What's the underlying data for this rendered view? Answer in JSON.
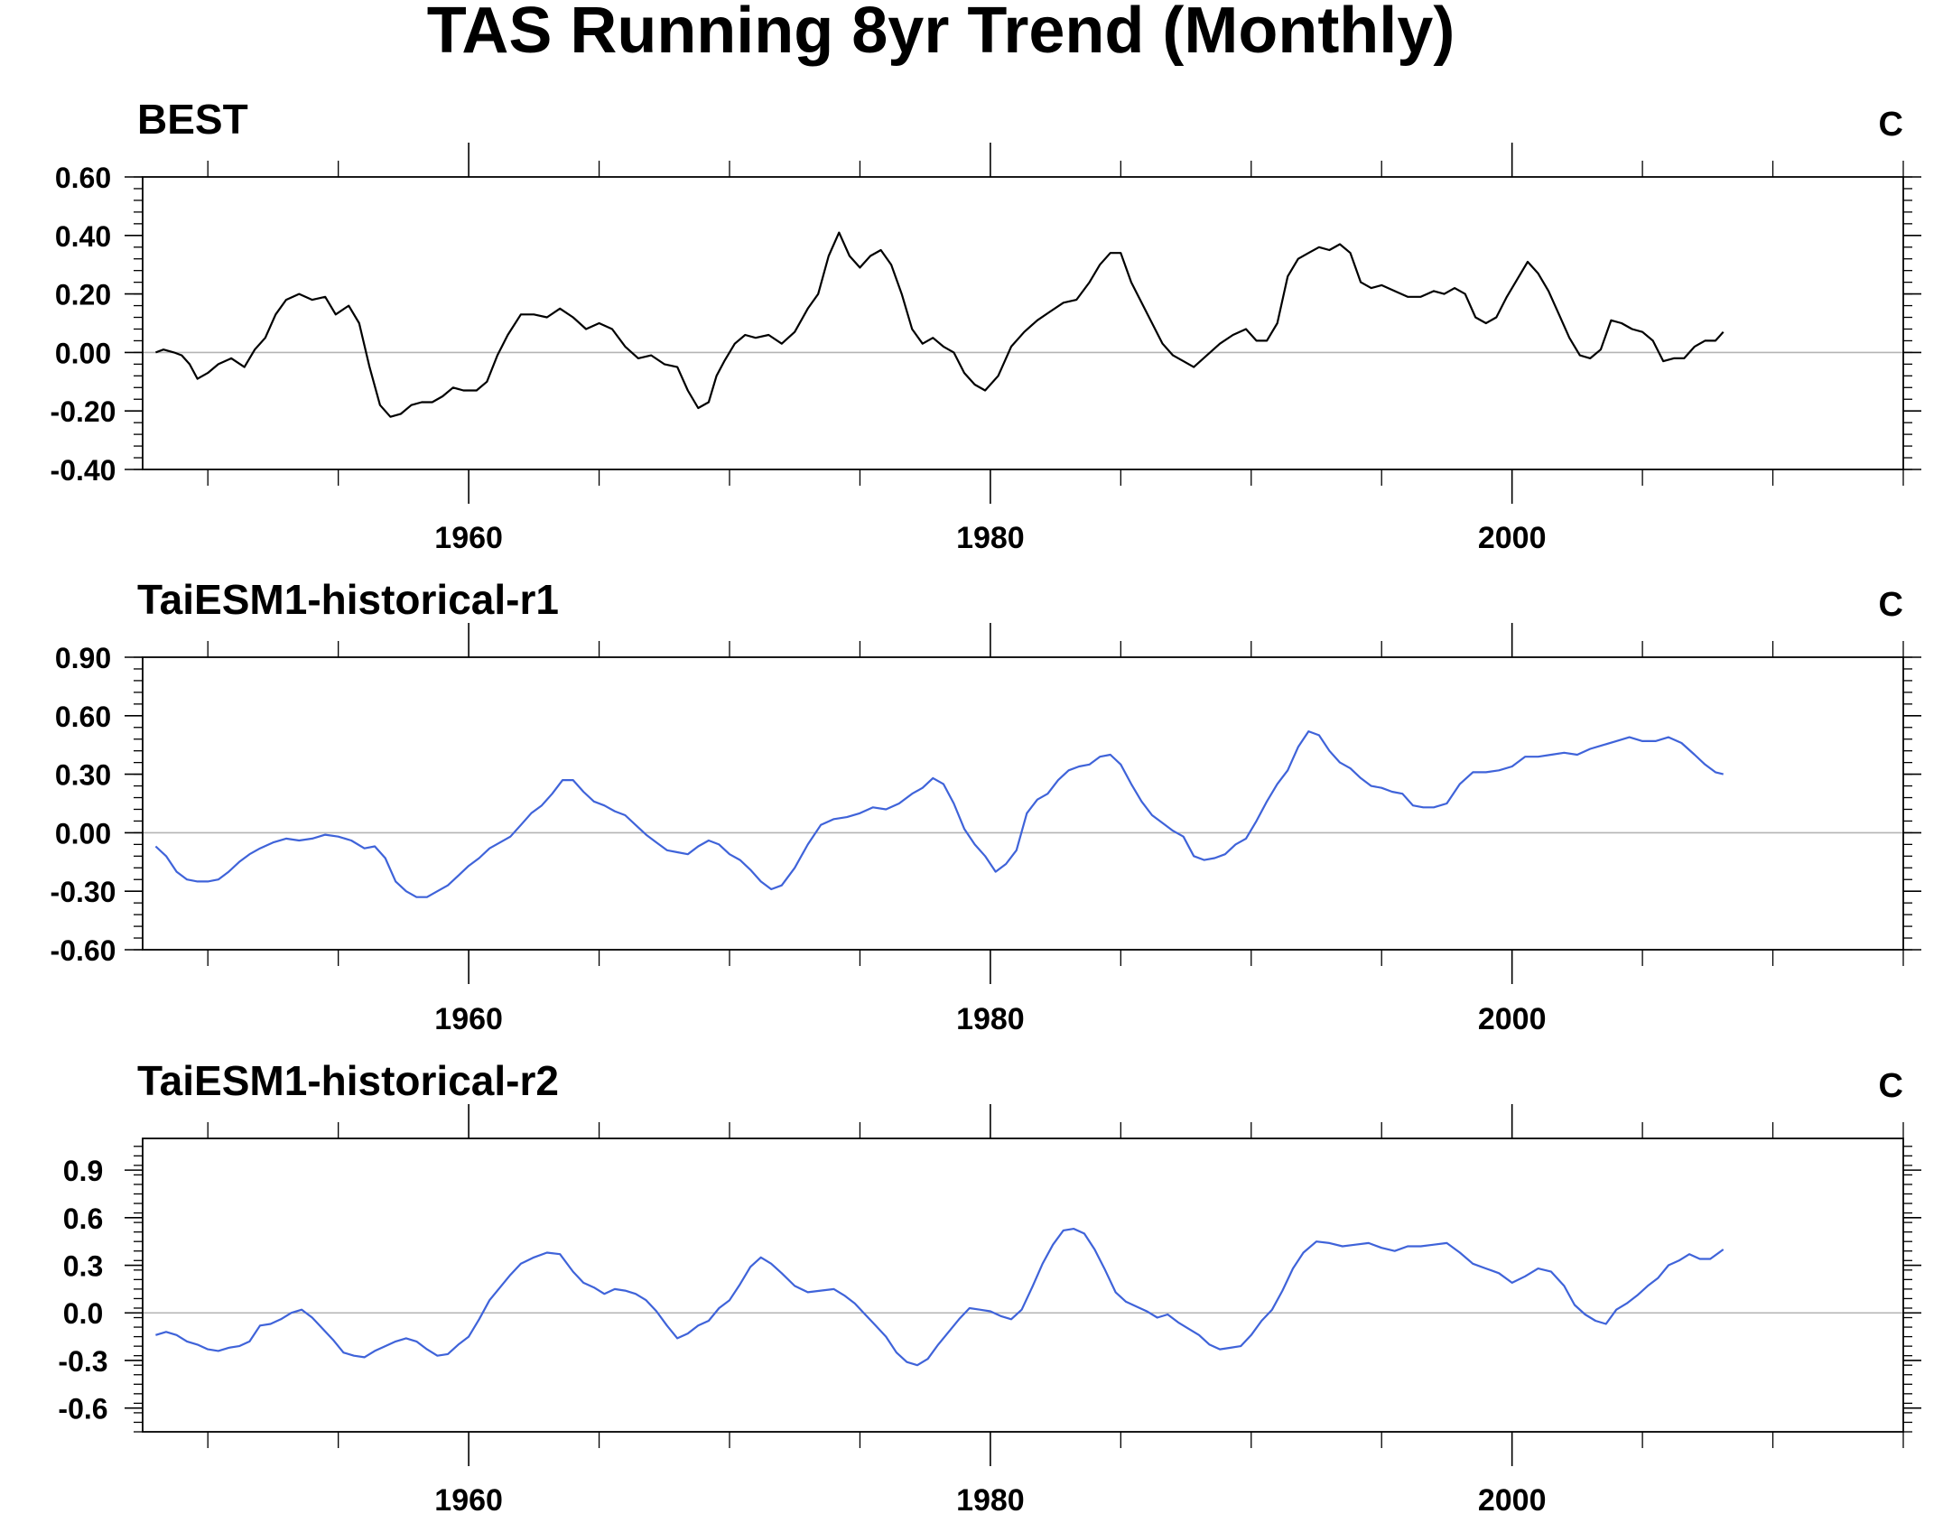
{
  "title": "TAS Running 8yr Trend (Monthly)",
  "colors": {
    "obs": "#000000",
    "model": "#3f63d9",
    "zero": "#b4b4b4",
    "axis": "#000000"
  },
  "chart_data": [
    {
      "type": "line",
      "title": "BEST",
      "units": "C",
      "xlim": [
        1947.5,
        2015
      ],
      "ylim": [
        -0.4,
        0.6
      ],
      "yticks": [
        -0.4,
        -0.2,
        0.0,
        0.2,
        0.4,
        0.6
      ],
      "ytick_labels": [
        "-0.40",
        "-0.20",
        "0.00",
        "0.20",
        "0.40",
        "0.60"
      ],
      "xticks": [
        1960,
        1980,
        2000
      ],
      "xtick_labels": [
        "1960",
        "1980",
        "2000"
      ],
      "series": [
        {
          "color": "#000000",
          "x": [
            1948.0,
            1948.3,
            1948.7,
            1949.0,
            1949.3,
            1949.6,
            1950.0,
            1950.4,
            1950.9,
            1951.4,
            1951.8,
            1952.2,
            1952.6,
            1953.0,
            1953.5,
            1954.0,
            1954.5,
            1954.9,
            1955.4,
            1955.8,
            1956.2,
            1956.6,
            1957.0,
            1957.4,
            1957.8,
            1958.2,
            1958.6,
            1959.0,
            1959.4,
            1959.8,
            1960.3,
            1960.7,
            1961.1,
            1961.5,
            1962.0,
            1962.5,
            1963.0,
            1963.5,
            1964.0,
            1964.5,
            1965.0,
            1965.5,
            1966.0,
            1966.5,
            1967.0,
            1967.5,
            1968.0,
            1968.4,
            1968.8,
            1969.2,
            1969.5,
            1969.8,
            1970.2,
            1970.6,
            1971.0,
            1971.5,
            1972.0,
            1972.5,
            1973.0,
            1973.4,
            1973.8,
            1974.2,
            1974.6,
            1975.0,
            1975.4,
            1975.8,
            1976.2,
            1976.6,
            1977.0,
            1977.4,
            1977.8,
            1978.2,
            1978.6,
            1979.0,
            1979.4,
            1979.8,
            1980.3,
            1980.8,
            1981.3,
            1981.8,
            1982.3,
            1982.8,
            1983.3,
            1983.8,
            1984.2,
            1984.6,
            1985.0,
            1985.4,
            1985.8,
            1986.2,
            1986.6,
            1987.0,
            1987.4,
            1987.8,
            1988.3,
            1988.8,
            1989.3,
            1989.8,
            1990.2,
            1990.6,
            1991.0,
            1991.4,
            1991.8,
            1992.2,
            1992.6,
            1993.0,
            1993.4,
            1993.8,
            1994.2,
            1994.6,
            1995.0,
            1995.5,
            1996.0,
            1996.5,
            1997.0,
            1997.4,
            1997.8,
            1998.2,
            1998.6,
            1999.0,
            1999.4,
            1999.8,
            2000.2,
            2000.6,
            2001.0,
            2001.4,
            2001.8,
            2002.2,
            2002.6,
            2003.0,
            2003.4,
            2003.8,
            2004.2,
            2004.6,
            2005.0,
            2005.4,
            2005.8,
            2006.2,
            2006.6,
            2007.0,
            2007.4,
            2007.8,
            2008.1
          ],
          "y": [
            0.0,
            0.01,
            0.0,
            -0.01,
            -0.04,
            -0.09,
            -0.07,
            -0.04,
            -0.02,
            -0.05,
            0.01,
            0.05,
            0.13,
            0.18,
            0.2,
            0.18,
            0.19,
            0.13,
            0.16,
            0.1,
            -0.05,
            -0.18,
            -0.22,
            -0.21,
            -0.18,
            -0.17,
            -0.17,
            -0.15,
            -0.12,
            -0.13,
            -0.13,
            -0.1,
            -0.01,
            0.06,
            0.13,
            0.13,
            0.12,
            0.15,
            0.12,
            0.08,
            0.1,
            0.08,
            0.02,
            -0.02,
            -0.01,
            -0.04,
            -0.05,
            -0.13,
            -0.19,
            -0.17,
            -0.08,
            -0.03,
            0.03,
            0.06,
            0.05,
            0.06,
            0.03,
            0.07,
            0.15,
            0.2,
            0.33,
            0.41,
            0.33,
            0.29,
            0.33,
            0.35,
            0.3,
            0.2,
            0.08,
            0.03,
            0.05,
            0.02,
            0.0,
            -0.07,
            -0.11,
            -0.13,
            -0.08,
            0.02,
            0.07,
            0.11,
            0.14,
            0.17,
            0.18,
            0.24,
            0.3,
            0.34,
            0.34,
            0.24,
            0.17,
            0.1,
            0.03,
            -0.01,
            -0.03,
            -0.05,
            -0.01,
            0.03,
            0.06,
            0.08,
            0.04,
            0.04,
            0.1,
            0.26,
            0.32,
            0.34,
            0.36,
            0.35,
            0.37,
            0.34,
            0.24,
            0.22,
            0.23,
            0.21,
            0.19,
            0.19,
            0.21,
            0.2,
            0.22,
            0.2,
            0.12,
            0.1,
            0.12,
            0.19,
            0.25,
            0.31,
            0.27,
            0.21,
            0.13,
            0.05,
            -0.01,
            -0.02,
            0.01,
            0.11,
            0.1,
            0.08,
            0.07,
            0.04,
            -0.03,
            -0.02,
            -0.02,
            0.02,
            0.04,
            0.04,
            0.07
          ]
        }
      ]
    },
    {
      "type": "line",
      "title": "TaiESM1-historical-r1",
      "units": "C",
      "xlim": [
        1947.5,
        2015
      ],
      "ylim": [
        -0.6,
        0.9
      ],
      "yticks": [
        -0.6,
        -0.3,
        0.0,
        0.3,
        0.6,
        0.9
      ],
      "ytick_labels": [
        "-0.60",
        "-0.30",
        "0.00",
        "0.30",
        "0.60",
        "0.90"
      ],
      "xticks": [
        1960,
        1980,
        2000
      ],
      "xtick_labels": [
        "1960",
        "1980",
        "2000"
      ],
      "series": [
        {
          "color": "#3f63d9",
          "x": [
            1948.0,
            1948.4,
            1948.8,
            1949.2,
            1949.6,
            1950.0,
            1950.4,
            1950.8,
            1951.2,
            1951.6,
            1952.0,
            1952.5,
            1953.0,
            1953.5,
            1954.0,
            1954.5,
            1955.0,
            1955.5,
            1956.0,
            1956.4,
            1956.8,
            1957.2,
            1957.6,
            1958.0,
            1958.4,
            1958.8,
            1959.2,
            1959.6,
            1960.0,
            1960.4,
            1960.8,
            1961.2,
            1961.6,
            1962.0,
            1962.4,
            1962.8,
            1963.2,
            1963.6,
            1964.0,
            1964.4,
            1964.8,
            1965.2,
            1965.6,
            1966.0,
            1966.4,
            1966.8,
            1967.2,
            1967.6,
            1968.0,
            1968.4,
            1968.8,
            1969.2,
            1969.6,
            1970.0,
            1970.4,
            1970.8,
            1971.2,
            1971.6,
            1972.0,
            1972.5,
            1973.0,
            1973.5,
            1974.0,
            1974.5,
            1975.0,
            1975.5,
            1976.0,
            1976.5,
            1977.0,
            1977.4,
            1977.8,
            1978.2,
            1978.6,
            1979.0,
            1979.4,
            1979.8,
            1980.2,
            1980.6,
            1981.0,
            1981.4,
            1981.8,
            1982.2,
            1982.6,
            1983.0,
            1983.4,
            1983.8,
            1984.2,
            1984.6,
            1985.0,
            1985.4,
            1985.8,
            1986.2,
            1986.6,
            1987.0,
            1987.4,
            1987.8,
            1988.2,
            1988.6,
            1989.0,
            1989.4,
            1989.8,
            1990.2,
            1990.6,
            1991.0,
            1991.4,
            1991.8,
            1992.2,
            1992.6,
            1993.0,
            1993.4,
            1993.8,
            1994.2,
            1994.6,
            1995.0,
            1995.4,
            1995.8,
            1996.2,
            1996.6,
            1997.0,
            1997.5,
            1998.0,
            1998.5,
            1999.0,
            1999.5,
            2000.0,
            2000.5,
            2001.0,
            2001.5,
            2002.0,
            2002.5,
            2003.0,
            2003.5,
            2004.0,
            2004.5,
            2005.0,
            2005.5,
            2006.0,
            2006.5,
            2007.0,
            2007.4,
            2007.8,
            2008.1
          ],
          "y": [
            -0.07,
            -0.12,
            -0.2,
            -0.24,
            -0.25,
            -0.25,
            -0.24,
            -0.2,
            -0.15,
            -0.11,
            -0.08,
            -0.05,
            -0.03,
            -0.04,
            -0.03,
            -0.01,
            -0.02,
            -0.04,
            -0.08,
            -0.07,
            -0.13,
            -0.25,
            -0.3,
            -0.33,
            -0.33,
            -0.3,
            -0.27,
            -0.22,
            -0.17,
            -0.13,
            -0.08,
            -0.05,
            -0.02,
            0.04,
            0.1,
            0.14,
            0.2,
            0.27,
            0.27,
            0.21,
            0.16,
            0.14,
            0.11,
            0.09,
            0.04,
            -0.01,
            -0.05,
            -0.09,
            -0.1,
            -0.11,
            -0.07,
            -0.04,
            -0.06,
            -0.11,
            -0.14,
            -0.19,
            -0.25,
            -0.29,
            -0.27,
            -0.18,
            -0.06,
            0.04,
            0.07,
            0.08,
            0.1,
            0.13,
            0.12,
            0.15,
            0.2,
            0.23,
            0.28,
            0.25,
            0.15,
            0.02,
            -0.06,
            -0.12,
            -0.2,
            -0.16,
            -0.09,
            0.1,
            0.17,
            0.2,
            0.27,
            0.32,
            0.34,
            0.35,
            0.39,
            0.4,
            0.35,
            0.25,
            0.16,
            0.09,
            0.05,
            0.01,
            -0.02,
            -0.12,
            -0.14,
            -0.13,
            -0.11,
            -0.06,
            -0.03,
            0.06,
            0.16,
            0.25,
            0.32,
            0.44,
            0.52,
            0.5,
            0.42,
            0.36,
            0.33,
            0.28,
            0.24,
            0.23,
            0.21,
            0.2,
            0.14,
            0.13,
            0.13,
            0.15,
            0.25,
            0.31,
            0.31,
            0.32,
            0.34,
            0.39,
            0.39,
            0.4,
            0.41,
            0.4,
            0.43,
            0.45,
            0.47,
            0.49,
            0.47,
            0.47,
            0.49,
            0.46,
            0.4,
            0.35,
            0.31,
            0.3
          ]
        }
      ]
    },
    {
      "type": "line",
      "title": "TaiESM1-historical-r2",
      "units": "C",
      "xlim": [
        1947.5,
        2015
      ],
      "ylim": [
        -0.75,
        1.1
      ],
      "yticks": [
        -0.6,
        -0.3,
        0.0,
        0.3,
        0.6,
        0.9
      ],
      "ytick_labels": [
        "-0.6",
        "-0.3",
        "0.0",
        "0.3",
        "0.6",
        "0.9"
      ],
      "xticks": [
        1960,
        1980,
        2000
      ],
      "xtick_labels": [
        "1960",
        "1980",
        "2000"
      ],
      "series": [
        {
          "color": "#3f63d9",
          "x": [
            1948.0,
            1948.4,
            1948.8,
            1949.2,
            1949.6,
            1950.0,
            1950.4,
            1950.8,
            1951.2,
            1951.6,
            1952.0,
            1952.4,
            1952.8,
            1953.2,
            1953.6,
            1954.0,
            1954.4,
            1954.8,
            1955.2,
            1955.6,
            1956.0,
            1956.4,
            1956.8,
            1957.2,
            1957.6,
            1958.0,
            1958.4,
            1958.8,
            1959.2,
            1959.6,
            1960.0,
            1960.4,
            1960.8,
            1961.2,
            1961.6,
            1962.0,
            1962.5,
            1963.0,
            1963.5,
            1964.0,
            1964.4,
            1964.8,
            1965.2,
            1965.6,
            1966.0,
            1966.4,
            1966.8,
            1967.2,
            1967.6,
            1968.0,
            1968.4,
            1968.8,
            1969.2,
            1969.6,
            1970.0,
            1970.4,
            1970.8,
            1971.2,
            1971.6,
            1972.0,
            1972.5,
            1973.0,
            1973.5,
            1974.0,
            1974.4,
            1974.8,
            1975.2,
            1975.6,
            1976.0,
            1976.4,
            1976.8,
            1977.2,
            1977.6,
            1978.0,
            1978.4,
            1978.8,
            1979.2,
            1979.6,
            1980.0,
            1980.4,
            1980.8,
            1981.2,
            1981.6,
            1982.0,
            1982.4,
            1982.8,
            1983.2,
            1983.6,
            1984.0,
            1984.4,
            1984.8,
            1985.2,
            1985.6,
            1986.0,
            1986.4,
            1986.8,
            1987.2,
            1987.6,
            1988.0,
            1988.4,
            1988.8,
            1989.2,
            1989.6,
            1990.0,
            1990.4,
            1990.8,
            1991.2,
            1991.6,
            1992.0,
            1992.5,
            1993.0,
            1993.5,
            1994.0,
            1994.5,
            1995.0,
            1995.5,
            1996.0,
            1996.5,
            1997.0,
            1997.5,
            1998.0,
            1998.5,
            1999.0,
            1999.5,
            2000.0,
            2000.5,
            2001.0,
            2001.5,
            2002.0,
            2002.4,
            2002.8,
            2003.2,
            2003.6,
            2004.0,
            2004.4,
            2004.8,
            2005.2,
            2005.6,
            2006.0,
            2006.4,
            2006.8,
            2007.2,
            2007.6,
            2008.1
          ],
          "y": [
            -0.14,
            -0.12,
            -0.14,
            -0.18,
            -0.2,
            -0.23,
            -0.24,
            -0.22,
            -0.21,
            -0.18,
            -0.08,
            -0.07,
            -0.04,
            0.0,
            0.02,
            -0.03,
            -0.1,
            -0.17,
            -0.25,
            -0.27,
            -0.28,
            -0.24,
            -0.21,
            -0.18,
            -0.16,
            -0.18,
            -0.23,
            -0.27,
            -0.26,
            -0.2,
            -0.15,
            -0.04,
            0.08,
            0.16,
            0.24,
            0.31,
            0.35,
            0.38,
            0.37,
            0.26,
            0.19,
            0.16,
            0.12,
            0.15,
            0.14,
            0.12,
            0.08,
            0.01,
            -0.08,
            -0.16,
            -0.13,
            -0.08,
            -0.05,
            0.03,
            0.08,
            0.18,
            0.29,
            0.35,
            0.31,
            0.25,
            0.17,
            0.13,
            0.14,
            0.15,
            0.11,
            0.06,
            -0.01,
            -0.08,
            -0.15,
            -0.25,
            -0.31,
            -0.33,
            -0.29,
            -0.2,
            -0.12,
            -0.04,
            0.03,
            0.02,
            0.01,
            -0.02,
            -0.04,
            0.02,
            0.16,
            0.31,
            0.43,
            0.52,
            0.53,
            0.5,
            0.4,
            0.27,
            0.13,
            0.07,
            0.04,
            0.01,
            -0.03,
            -0.01,
            -0.06,
            -0.1,
            -0.14,
            -0.2,
            -0.23,
            -0.22,
            -0.21,
            -0.14,
            -0.05,
            0.02,
            0.14,
            0.28,
            0.38,
            0.45,
            0.44,
            0.42,
            0.43,
            0.44,
            0.41,
            0.39,
            0.42,
            0.42,
            0.43,
            0.44,
            0.38,
            0.31,
            0.28,
            0.25,
            0.19,
            0.23,
            0.28,
            0.26,
            0.17,
            0.05,
            -0.01,
            -0.05,
            -0.07,
            0.02,
            0.06,
            0.11,
            0.17,
            0.22,
            0.3,
            0.33,
            0.37,
            0.34,
            0.34,
            0.4
          ]
        }
      ]
    }
  ]
}
